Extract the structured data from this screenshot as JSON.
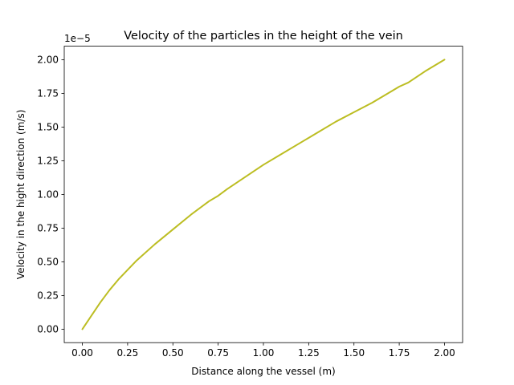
{
  "chart_data": {
    "type": "line",
    "title": "Velocity of the particles in the height of the vein",
    "xlabel": "Distance along the vessel (m)",
    "ylabel": "Velocity in the hight direction (m/s)",
    "offset_label": "1e−5",
    "xlim": [
      -0.1,
      2.1
    ],
    "ylim": [
      -0.1,
      2.1
    ],
    "x_ticks": [
      0.0,
      0.25,
      0.5,
      0.75,
      1.0,
      1.25,
      1.5,
      1.75,
      2.0
    ],
    "x_tick_labels": [
      "0.00",
      "0.25",
      "0.50",
      "0.75",
      "1.00",
      "1.25",
      "1.50",
      "1.75",
      "2.00"
    ],
    "y_ticks": [
      0.0,
      0.25,
      0.5,
      0.75,
      1.0,
      1.25,
      1.5,
      1.75,
      2.0
    ],
    "y_tick_labels": [
      "0.00",
      "0.25",
      "0.50",
      "0.75",
      "1.00",
      "1.25",
      "1.50",
      "1.75",
      "2.00"
    ],
    "grid": false,
    "legend": "none",
    "line_color": "#bcbd22",
    "series": [
      {
        "x": [
          0.0,
          0.05,
          0.1,
          0.15,
          0.2,
          0.25,
          0.3,
          0.4,
          0.5,
          0.6,
          0.7,
          0.75,
          0.8,
          0.9,
          1.0,
          1.1,
          1.2,
          1.25,
          1.3,
          1.4,
          1.5,
          1.6,
          1.7,
          1.75,
          1.8,
          1.9,
          2.0
        ],
        "y": [
          0.0,
          0.1,
          0.2,
          0.29,
          0.37,
          0.44,
          0.51,
          0.63,
          0.74,
          0.85,
          0.95,
          0.99,
          1.04,
          1.13,
          1.22,
          1.3,
          1.38,
          1.42,
          1.46,
          1.54,
          1.61,
          1.68,
          1.76,
          1.8,
          1.83,
          1.92,
          2.0
        ]
      }
    ]
  }
}
